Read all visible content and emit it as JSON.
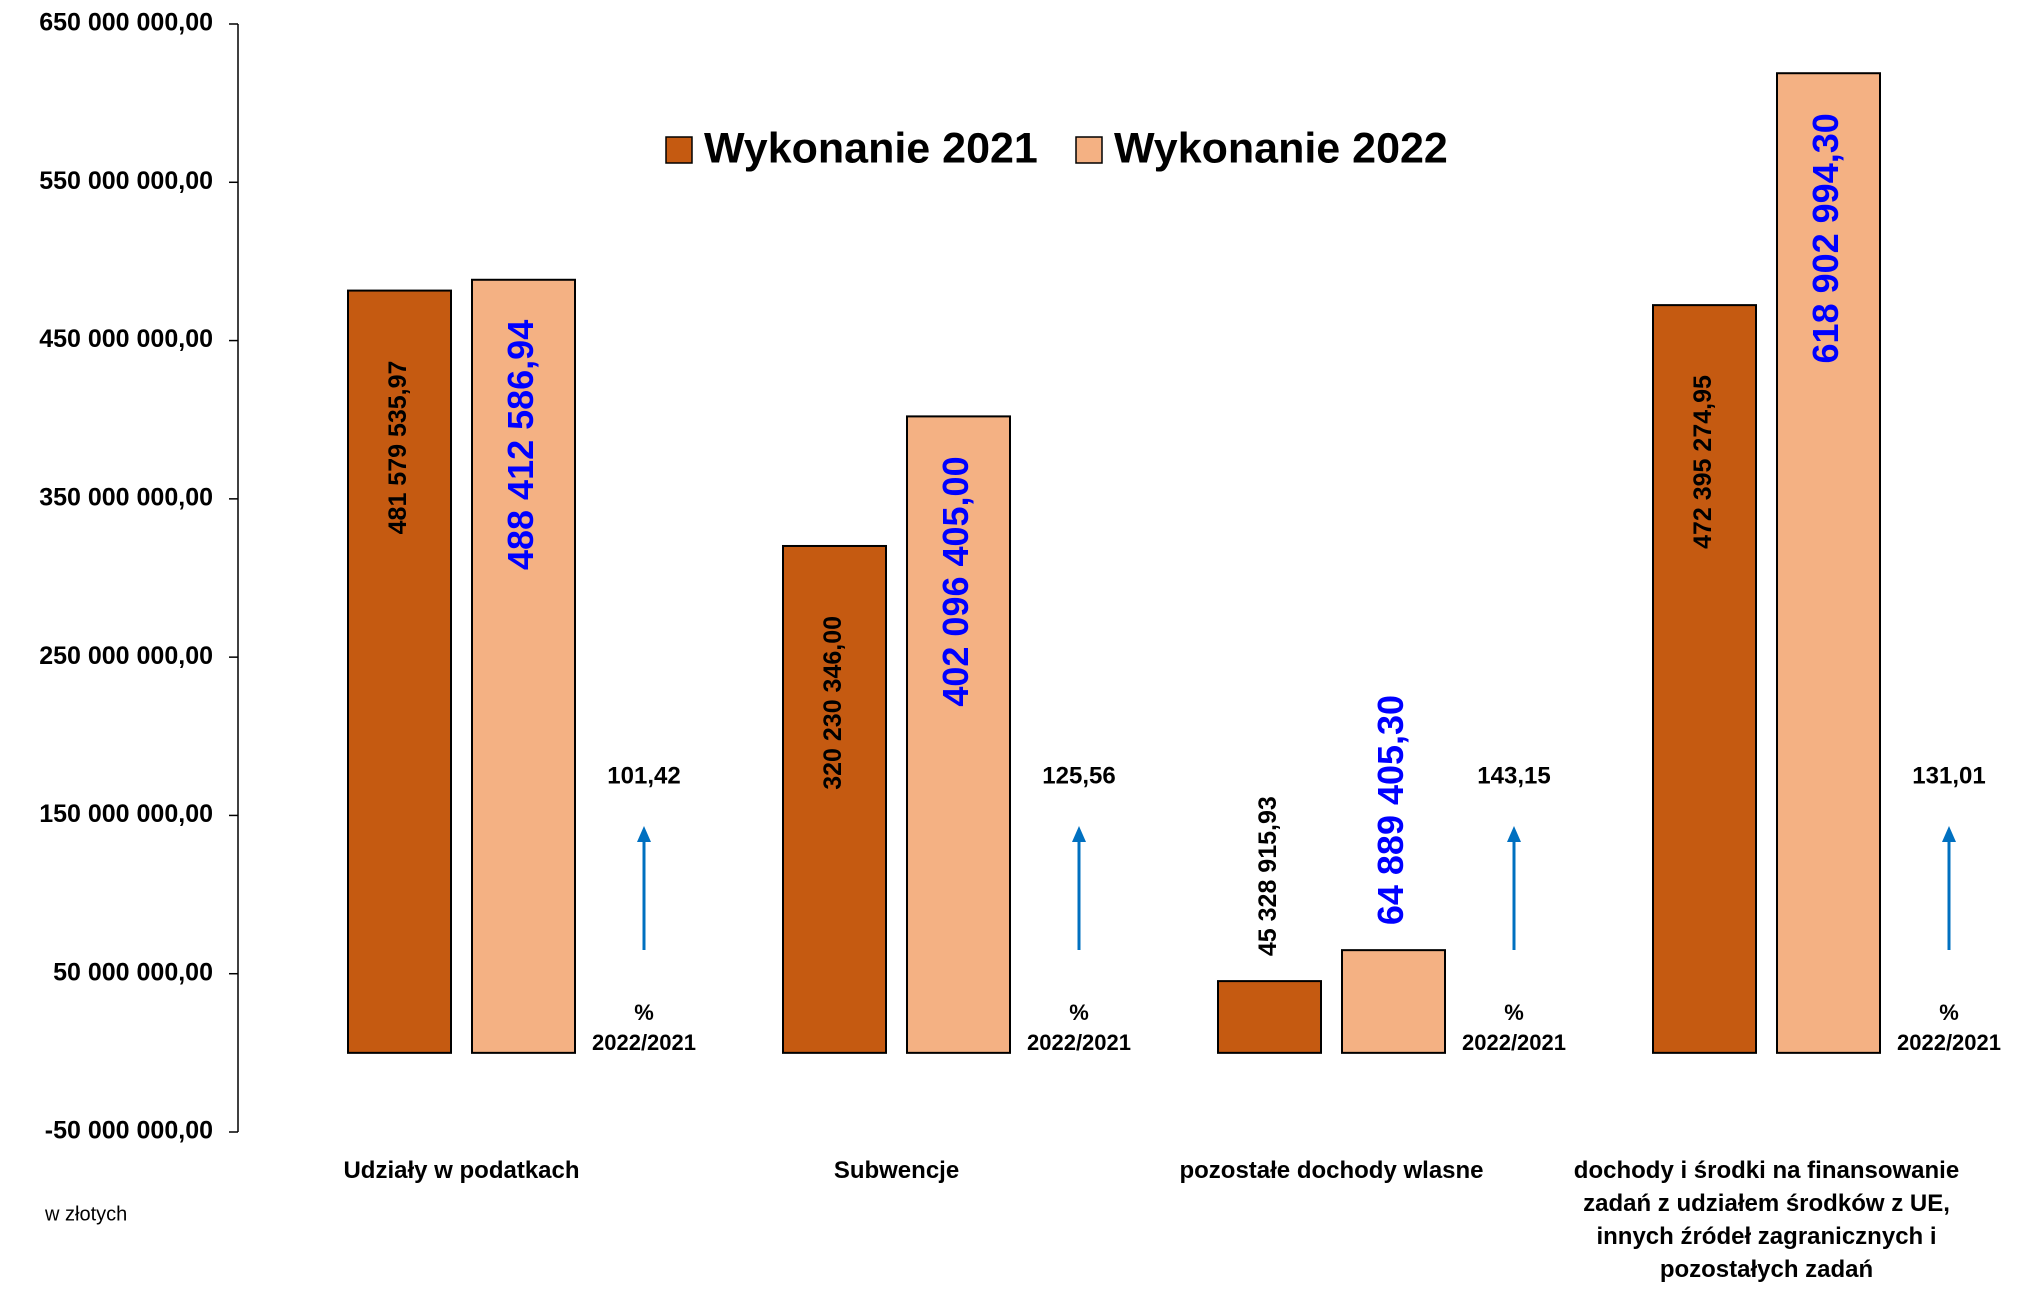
{
  "chart_data": {
    "type": "bar",
    "categories": [
      "Udziały w podatkach",
      "Subwencje",
      "pozostałe dochody wlasne",
      "dochody i środki na finansowanie\nzadań z udziałem środków z UE,\ninnych źródeł zagranicznych i\npozostałych zadań"
    ],
    "series": [
      {
        "name": "Wykonanie 2021",
        "color": "#c55a11",
        "label_color": "#000000",
        "values": [
          481579535.97,
          320230346.0,
          45328915.93,
          472395274.95
        ],
        "value_labels": [
          "481 579 535,97",
          "320 230 346,00",
          "45 328 915,93",
          "472 395 274,95"
        ]
      },
      {
        "name": "Wykonanie 2022",
        "color": "#f4b183",
        "label_color": "#0000ff",
        "values": [
          488412586.94,
          402096405.0,
          64889405.3,
          618902994.3
        ],
        "value_labels": [
          "488 412 586,94",
          "402 096 405,00",
          "64 889 405,30",
          "618 902 994,30"
        ]
      }
    ],
    "ylim": [
      -50000000,
      650000000
    ],
    "yticks": [
      {
        "value": -50000000,
        "label": "-50 000 000,00"
      },
      {
        "value": 50000000,
        "label": "50 000 000,00"
      },
      {
        "value": 150000000,
        "label": "150 000 000,00"
      },
      {
        "value": 250000000,
        "label": "250 000 000,00"
      },
      {
        "value": 350000000,
        "label": "350 000 000,00"
      },
      {
        "value": 450000000,
        "label": "450 000 000,00"
      },
      {
        "value": 550000000,
        "label": "550 000 000,00"
      },
      {
        "value": 650000000,
        "label": "650 000 000,00"
      }
    ],
    "grid": false,
    "legend": "top",
    "annotations": {
      "ratio_labels": [
        "101,42",
        "125,56",
        "143,15",
        "131,01"
      ],
      "ratio_caption": [
        "%",
        "2022/2021"
      ],
      "unit_note": "w złotych"
    }
  }
}
